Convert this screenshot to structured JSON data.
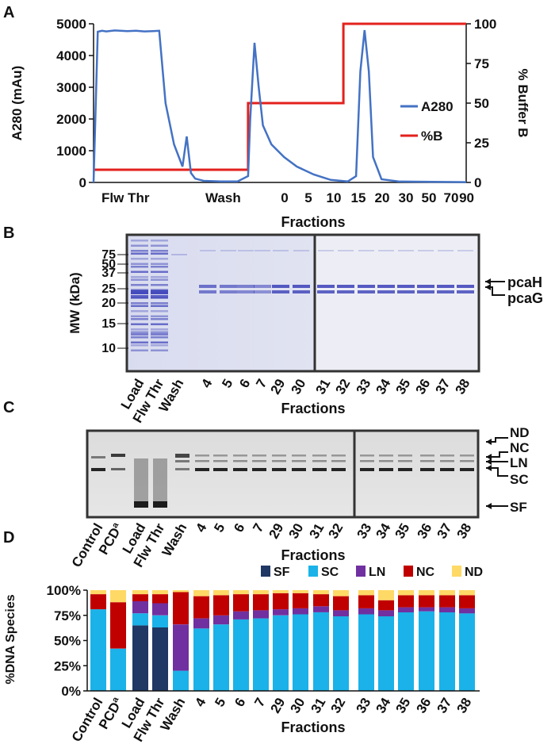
{
  "panels": {
    "A": "A",
    "B": "B",
    "C": "C",
    "D": "D"
  },
  "colors": {
    "a280": "#4472C4",
    "percent_b": "#e3211c",
    "SF": "#1f3864",
    "SC": "#1ab2e8",
    "LN": "#7030a0",
    "NC": "#c00000",
    "ND": "#ffd966"
  },
  "chart_data": [
    {
      "type": "line",
      "panel": "A",
      "ylabel": "A280 (mAu)",
      "ylabel_right": "% Buffer B",
      "xlabel": "Fractions",
      "yticks_left": [
        "0",
        "1000",
        "2000",
        "3000",
        "4000",
        "5000"
      ],
      "yticks_right": [
        "0",
        "25",
        "50",
        "75",
        "100"
      ],
      "x_region_labels": [
        "Flw Thr",
        "Wash"
      ],
      "x_tick_labels": [
        "0",
        "5",
        "10",
        "15",
        "20",
        "30",
        "50",
        "70",
        "90"
      ],
      "ylim_left": [
        0,
        5000
      ],
      "ylim_right": [
        0,
        100
      ],
      "legend": [
        "A280",
        "%B"
      ],
      "legend_position": "right",
      "series": [
        {
          "name": "A280",
          "x": [
            0,
            1,
            2,
            3,
            5,
            8,
            10,
            12,
            14,
            15.5,
            17,
            19,
            21,
            22,
            23,
            24,
            26,
            30,
            34,
            36.5,
            37,
            38,
            39,
            40,
            42,
            45,
            48,
            52,
            56,
            60,
            62,
            63,
            64,
            65,
            66,
            68,
            72,
            80,
            88
          ],
          "y": [
            0,
            4750,
            4780,
            4760,
            4790,
            4770,
            4780,
            4760,
            4770,
            4780,
            2500,
            1200,
            500,
            1450,
            300,
            120,
            50,
            30,
            30,
            200,
            2000,
            4400,
            3000,
            1800,
            1200,
            800,
            500,
            250,
            80,
            30,
            200,
            3500,
            4800,
            3500,
            800,
            100,
            30,
            20,
            10
          ]
        },
        {
          "name": "%B",
          "x": [
            0,
            36.5,
            36.5,
            59,
            59,
            88
          ],
          "y": [
            8,
            8,
            50,
            50,
            100,
            100
          ]
        }
      ]
    },
    {
      "type": "gel",
      "panel": "B",
      "ylabel": "MW (kDa)",
      "xlabel": "Fractions",
      "mw_markers": [
        "75",
        "50",
        "37",
        "25",
        "20",
        "15",
        "10"
      ],
      "lanes": [
        "Load",
        "Flw Thr",
        "Wash",
        "4",
        "5",
        "6",
        "7",
        "29",
        "30",
        "31",
        "32",
        "33",
        "34",
        "35",
        "36",
        "37",
        "38"
      ],
      "band_labels": [
        "pcaH",
        "pcaG"
      ]
    },
    {
      "type": "gel",
      "panel": "C",
      "xlabel": "Fractions",
      "lanes": [
        "Control",
        "PCDª",
        "Load",
        "Flw Thr",
        "Wash",
        "4",
        "5",
        "6",
        "7",
        "29",
        "30",
        "31",
        "32",
        "33",
        "34",
        "35",
        "36",
        "37",
        "38"
      ],
      "band_labels": [
        "ND",
        "NC",
        "LN",
        "SC",
        "SF"
      ]
    },
    {
      "type": "bar",
      "panel": "D",
      "stacked": true,
      "ylabel": "%DNA Species",
      "xlabel": "Fractions",
      "yticks": [
        "0%",
        "25%",
        "50%",
        "75%",
        "100%"
      ],
      "ylim": [
        0,
        100
      ],
      "legend_position": "top-right",
      "categories": [
        "Control",
        "PCDª",
        "Load",
        "Flw Thr",
        "Wash",
        "4",
        "5",
        "6",
        "7",
        "29",
        "30",
        "31",
        "32",
        "33",
        "34",
        "35",
        "36",
        "37",
        "38"
      ],
      "series": [
        {
          "name": "SF",
          "values": [
            0,
            0,
            65,
            63,
            0,
            0,
            0,
            0,
            0,
            0,
            0,
            0,
            0,
            0,
            0,
            0,
            0,
            0,
            0
          ]
        },
        {
          "name": "SC",
          "values": [
            81,
            42,
            12,
            12,
            20,
            62,
            66,
            71,
            72,
            75,
            76,
            78,
            74,
            76,
            74,
            78,
            79,
            78,
            77
          ]
        },
        {
          "name": "LN",
          "values": [
            0,
            0,
            12,
            12,
            46,
            10,
            9,
            8,
            8,
            6,
            6,
            6,
            6,
            6,
            6,
            5,
            4,
            5,
            5
          ]
        },
        {
          "name": "NC",
          "values": [
            15,
            46,
            7,
            9,
            32,
            22,
            20,
            17,
            16,
            16,
            15,
            12,
            14,
            13,
            10,
            12,
            12,
            12,
            13
          ]
        },
        {
          "name": "ND",
          "values": [
            4,
            12,
            4,
            4,
            2,
            6,
            5,
            4,
            4,
            3,
            3,
            4,
            6,
            5,
            10,
            5,
            5,
            5,
            5
          ]
        }
      ]
    }
  ]
}
